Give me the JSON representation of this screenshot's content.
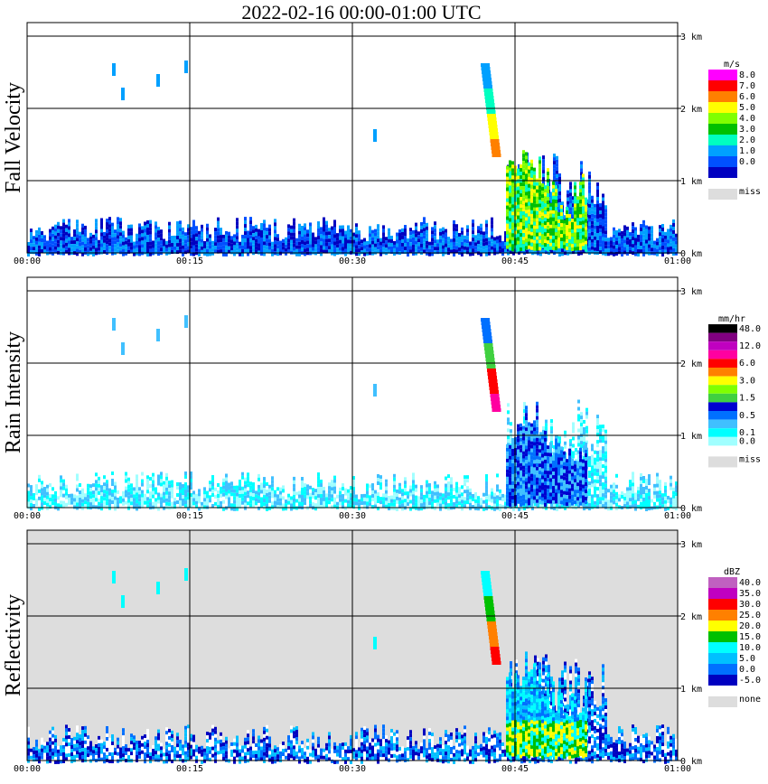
{
  "title": "2022-02-16   00:00-01:00 UTC",
  "chart_data": [
    {
      "type": "heatmap",
      "ylabel": "Fall Velocity",
      "unit": "m/s",
      "background": "#ffffff",
      "x_ticks": [
        "00:00",
        "00:15",
        "00:30",
        "00:45",
        "01:00"
      ],
      "y_ticks": [
        "0 km",
        "1 km",
        "2 km",
        "3 km"
      ],
      "xlim": [
        "00:00",
        "01:00"
      ],
      "ylim_km": [
        0,
        3.2
      ],
      "grid": true,
      "colorbar": [
        {
          "label": "8.0",
          "color": "#ff00ff"
        },
        {
          "label": "7.0",
          "color": "#ff0000"
        },
        {
          "label": "6.0",
          "color": "#ff8000"
        },
        {
          "label": "5.0",
          "color": "#ffff00"
        },
        {
          "label": "4.0",
          "color": "#80ff00"
        },
        {
          "label": "3.0",
          "color": "#00c000"
        },
        {
          "label": "2.0",
          "color": "#00ffc0"
        },
        {
          "label": "1.0",
          "color": "#00a0ff"
        },
        {
          "label": "0.0",
          "color": "#0050ff"
        },
        {
          "label": "",
          "color": "#0000c0"
        }
      ],
      "missing": {
        "label": "miss",
        "color": "#dddddd"
      }
    },
    {
      "type": "heatmap",
      "ylabel": "Rain Intensity",
      "unit": "mm/hr",
      "background": "#ffffff",
      "x_ticks": [
        "00:00",
        "00:15",
        "00:30",
        "00:45",
        "01:00"
      ],
      "y_ticks": [
        "0 km",
        "1 km",
        "2 km",
        "3 km"
      ],
      "xlim": [
        "00:00",
        "01:00"
      ],
      "ylim_km": [
        0,
        3.2
      ],
      "grid": true,
      "colorbar": [
        {
          "label": "48.0",
          "color": "#000000"
        },
        {
          "label": "",
          "color": "#800080"
        },
        {
          "label": "12.0",
          "color": "#c000c0"
        },
        {
          "label": "",
          "color": "#ff00a0"
        },
        {
          "label": "6.0",
          "color": "#ff0000"
        },
        {
          "label": "",
          "color": "#ff8000"
        },
        {
          "label": "3.0",
          "color": "#ffff00"
        },
        {
          "label": "",
          "color": "#80ff00"
        },
        {
          "label": "1.5",
          "color": "#40d040"
        },
        {
          "label": "",
          "color": "#0000d0"
        },
        {
          "label": "0.5",
          "color": "#0070ff"
        },
        {
          "label": "",
          "color": "#40c0ff"
        },
        {
          "label": "0.1",
          "color": "#00ffff"
        },
        {
          "label": "0.0",
          "color": "#a0ffff"
        }
      ],
      "missing": {
        "label": "miss",
        "color": "#dddddd"
      }
    },
    {
      "type": "heatmap",
      "ylabel": "Reflectivity",
      "unit": "dBZ",
      "background": "#dddddd",
      "x_ticks": [
        "00:00",
        "00:15",
        "00:30",
        "00:45",
        "01:00"
      ],
      "y_ticks": [
        "0 km",
        "1 km",
        "2 km",
        "3 km"
      ],
      "xlim": [
        "00:00",
        "01:00"
      ],
      "ylim_km": [
        0,
        3.2
      ],
      "grid": true,
      "colorbar": [
        {
          "label": "40.0",
          "color": "#c060c0"
        },
        {
          "label": "35.0",
          "color": "#c000c0"
        },
        {
          "label": "30.0",
          "color": "#ff0000"
        },
        {
          "label": "25.0",
          "color": "#ff8000"
        },
        {
          "label": "20.0",
          "color": "#ffff00"
        },
        {
          "label": "15.0",
          "color": "#00c000"
        },
        {
          "label": "10.0",
          "color": "#00ffff"
        },
        {
          "label": "5.0",
          "color": "#00c0ff"
        },
        {
          "label": "0.0",
          "color": "#0070ff"
        },
        {
          "label": "-5.0",
          "color": "#0000c0"
        }
      ],
      "missing": {
        "label": "none",
        "color": "#dddddd"
      }
    }
  ]
}
